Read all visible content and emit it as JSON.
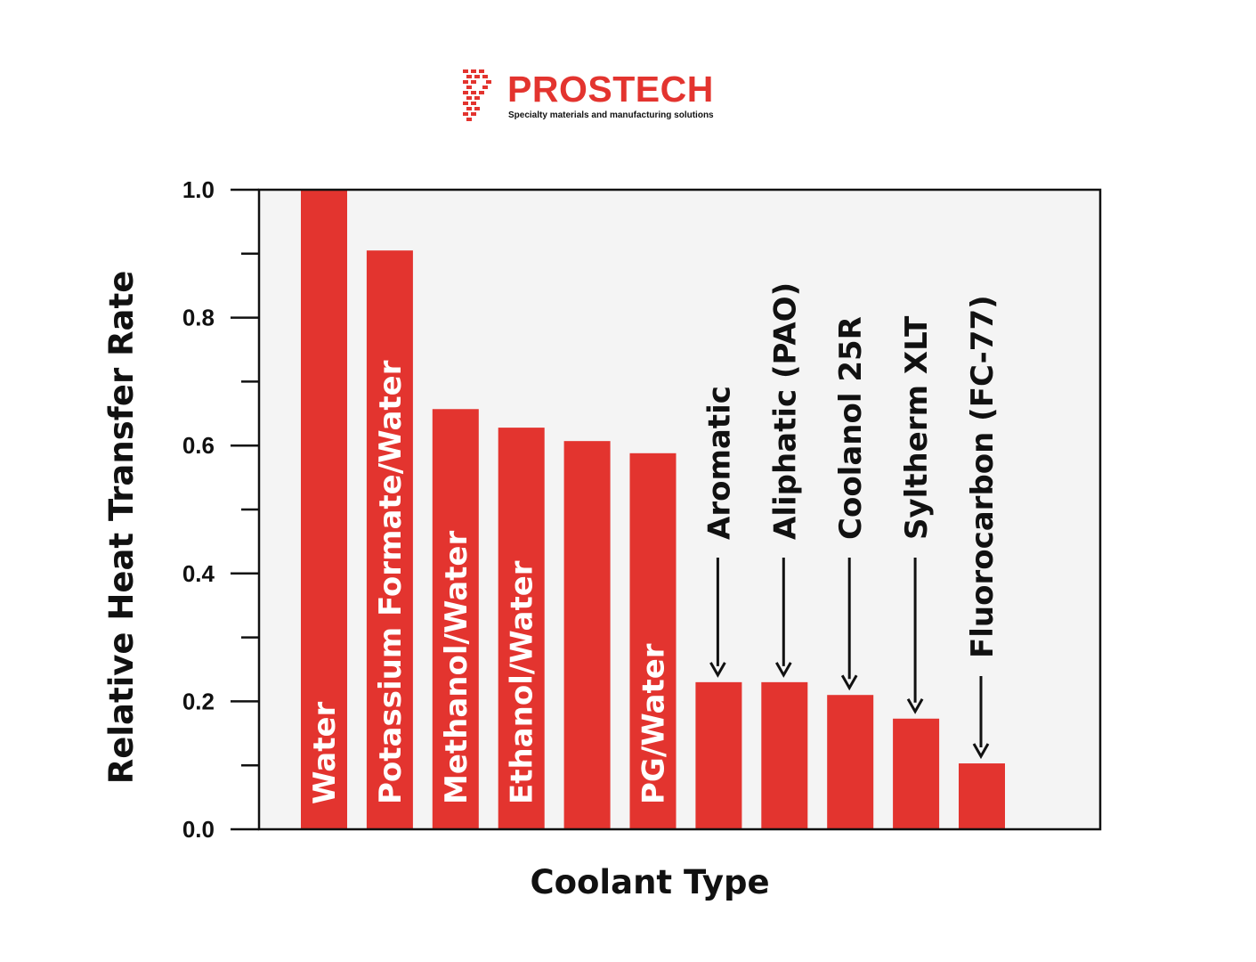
{
  "logo": {
    "name": "PROSTECH",
    "tagline": "Specialty materials and manufacturing solutions",
    "color": "#e3342f"
  },
  "chart_data": {
    "type": "bar",
    "title": "",
    "xlabel": "Coolant Type",
    "ylabel": "Relative Heat Transfer Rate",
    "ylim": [
      0,
      1.0
    ],
    "yticks": [
      "0.0",
      "0.2",
      "0.4",
      "0.6",
      "0.8",
      "1.0"
    ],
    "grid": false,
    "bar_color": "#e3342f",
    "plot_background": "#f4f4f4",
    "categories": [
      "Water",
      "Potassium Formate/Water",
      "Methanol/Water",
      "Ethanol/Water",
      "",
      "PG/Water",
      "Aromatic",
      "Aliphatic (PAO)",
      "Coolanol 25R",
      "Syltherm XLT",
      "Fluorocarbon (FC-77)"
    ],
    "values": [
      1.0,
      0.905,
      0.657,
      0.628,
      0.607,
      0.588,
      0.23,
      0.23,
      0.21,
      0.173,
      0.103
    ],
    "label_inside": [
      true,
      true,
      true,
      true,
      false,
      true,
      false,
      false,
      false,
      false,
      false
    ]
  }
}
